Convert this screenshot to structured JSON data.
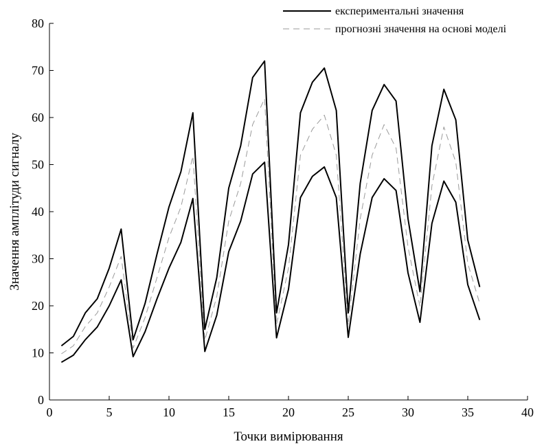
{
  "chart_data": {
    "type": "line",
    "title": "",
    "xlabel": "Точки вимірювання",
    "ylabel": "Значення амплітуди сигналу",
    "xlim": [
      0,
      40
    ],
    "ylim": [
      0,
      80
    ],
    "xticks": [
      0,
      5,
      10,
      15,
      20,
      25,
      30,
      35,
      40
    ],
    "yticks": [
      0,
      10,
      20,
      30,
      40,
      50,
      60,
      70,
      80
    ],
    "grid": false,
    "legend_position": "top-right",
    "x": [
      1,
      2,
      3,
      4,
      5,
      6,
      7,
      8,
      9,
      10,
      11,
      12,
      13,
      14,
      15,
      16,
      17,
      18,
      19,
      20,
      21,
      22,
      23,
      24,
      25,
      26,
      27,
      28,
      29,
      30,
      31,
      32,
      33,
      34,
      35,
      36
    ],
    "series": [
      {
        "name": "експериментальні значення",
        "style": "solid",
        "color": "#000000",
        "values": [
          11.5,
          13.5,
          18.5,
          21.5,
          28,
          36.3,
          12.8,
          20.5,
          31,
          41,
          48.5,
          61,
          15,
          26,
          45,
          54,
          68.5,
          72,
          18.5,
          33,
          61,
          67.5,
          70.5,
          61.5,
          18.5,
          46,
          61.5,
          67,
          63.5,
          38.5,
          23,
          54,
          66,
          59.5,
          34,
          24
        ]
      },
      {
        "name": "",
        "style": "solid",
        "color": "#000000",
        "values": [
          8,
          9.5,
          12.8,
          15.5,
          20,
          25.5,
          9.2,
          14.5,
          21.5,
          28,
          33.5,
          42.8,
          10.3,
          18,
          31.5,
          38,
          48,
          50.5,
          13.2,
          23.5,
          43,
          47.5,
          49.5,
          43,
          13.3,
          31,
          43,
          47,
          44.5,
          27,
          16.5,
          37.5,
          46.5,
          42,
          24.5,
          17
        ]
      },
      {
        "name": "прогнозні значення на основі моделі",
        "style": "dashed",
        "color": "#9a9a9a",
        "values": [
          9.8,
          11.5,
          15.6,
          18.5,
          24,
          30.5,
          11,
          17.5,
          26,
          34.5,
          41,
          51.8,
          12.7,
          22,
          38,
          46,
          58.5,
          64,
          16,
          28,
          52,
          57.5,
          60.5,
          52,
          15.9,
          38.5,
          52,
          58.5,
          53.5,
          32.5,
          19.8,
          45.5,
          58,
          50.5,
          29,
          20.5
        ]
      }
    ]
  }
}
